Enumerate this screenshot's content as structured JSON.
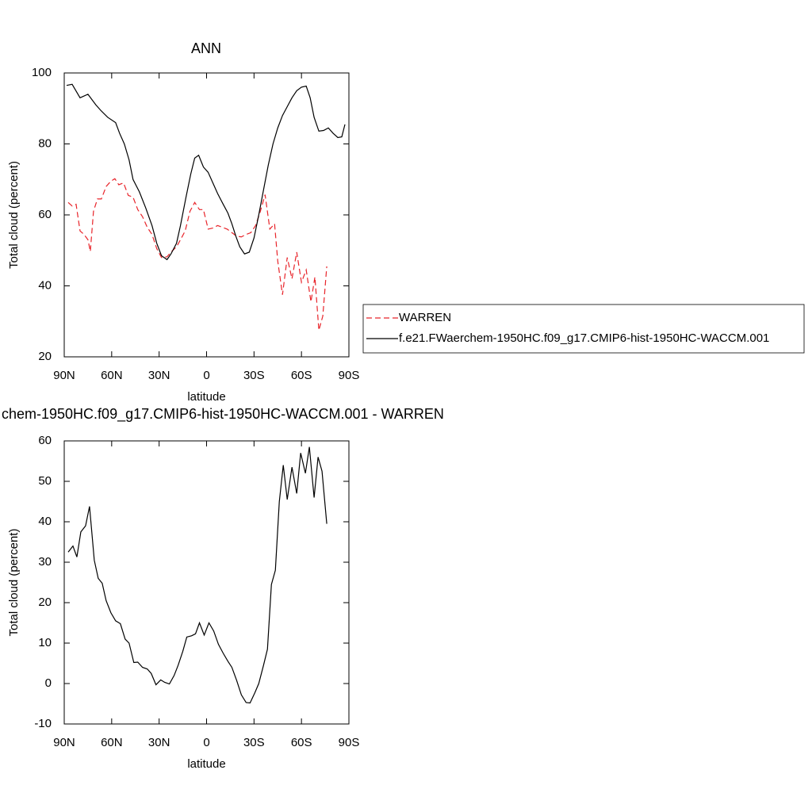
{
  "chart_data": [
    {
      "type": "line",
      "title": "ANN",
      "xlabel": "latitude",
      "ylabel": "Total cloud (percent)",
      "xlim": [
        90,
        -90
      ],
      "xticks": [
        {
          "value": 90,
          "label": "90N"
        },
        {
          "value": 60,
          "label": "60N"
        },
        {
          "value": 30,
          "label": "30N"
        },
        0,
        {
          "value": -30,
          "label": "30S"
        },
        {
          "value": -60,
          "label": "60S"
        },
        {
          "value": -90,
          "label": "90S"
        }
      ],
      "ylim": [
        20,
        100
      ],
      "yticks": [
        20,
        40,
        60,
        80,
        100
      ],
      "legend": "right",
      "series": [
        {
          "name": "WARREN",
          "color": "#e8242a",
          "dash": true,
          "x": [
            87.5,
            85,
            82.5,
            80,
            77.5,
            75,
            73.5,
            71.5,
            69,
            66.5,
            63.5,
            60.5,
            58,
            55.5,
            52.5,
            49.5,
            46.5,
            43.5,
            40.5,
            37.5,
            34.5,
            31.5,
            28.5,
            25,
            22.5,
            19,
            16.5,
            13.5,
            10.5,
            7.5,
            4.5,
            2,
            -1,
            -4,
            -7,
            -10,
            -13,
            -16,
            -19,
            -22,
            -25,
            -28,
            -31,
            -34,
            -37,
            -40,
            -43,
            -45,
            -48,
            -51,
            -54,
            -57,
            -60,
            -63,
            -66,
            -68.5,
            -71,
            -73.5,
            -76
          ],
          "values": [
            63.5,
            62.5,
            63,
            55.5,
            54.5,
            53,
            49.7,
            61,
            64.5,
            64.5,
            68,
            69.5,
            70.2,
            68.5,
            69,
            65.5,
            65,
            61.5,
            59.5,
            56.5,
            54.5,
            50.5,
            48,
            48.2,
            49.5,
            51,
            53,
            55.5,
            61,
            63.5,
            61.5,
            61.5,
            56,
            56.3,
            57,
            56.5,
            56,
            55,
            54,
            53.8,
            54.5,
            55,
            57,
            61,
            65.7,
            56,
            57.5,
            47,
            37.5,
            48,
            42,
            49.5,
            41,
            44.5,
            35.5,
            42.5,
            27.5,
            31.5,
            45.5
          ]
        },
        {
          "name": "f.e21.FWaerchem-1950HC.f09_g17.CMIP6-hist-1950HC-WACCM.001",
          "color": "#000000",
          "dash": false,
          "x": [
            88.5,
            85,
            80,
            75,
            70,
            67,
            62.5,
            57.5,
            55,
            52,
            49,
            46.5,
            42.5,
            38.5,
            34.5,
            31.5,
            28.5,
            25,
            22.5,
            19,
            16.5,
            13,
            10,
            7.5,
            5,
            2,
            -1,
            -4,
            -7,
            -10.5,
            -13.5,
            -16,
            -18.5,
            -21,
            -24,
            -27,
            -30,
            -33,
            -36,
            -39,
            -42,
            -45,
            -48,
            -51,
            -54,
            -57,
            -60,
            -63,
            -65.5,
            -68,
            -71,
            -74,
            -77,
            -80,
            -83,
            -85.5,
            -87.5
          ],
          "values": [
            96.5,
            96.8,
            93,
            94,
            91,
            89.5,
            87.5,
            86,
            83,
            80,
            75.5,
            70,
            66.5,
            62,
            57,
            52,
            48.5,
            47.4,
            49,
            52,
            57,
            65,
            71.5,
            76,
            76.8,
            73.5,
            72,
            69,
            66,
            63,
            60.5,
            57.5,
            54,
            51,
            49,
            49.5,
            53.5,
            60,
            67,
            74,
            80,
            84.5,
            88,
            90.5,
            93,
            95,
            96,
            96.3,
            93,
            87.5,
            83.6,
            83.8,
            84.5,
            83,
            81.8,
            82,
            85.5
          ]
        }
      ]
    },
    {
      "type": "line",
      "title": "chem-1950HC.f09_g17.CMIP6-hist-1950HC-WACCM.001 - WARREN",
      "xlabel": "latitude",
      "ylabel": "Total cloud (percent)",
      "xlim": [
        90,
        -90
      ],
      "xticks": [
        {
          "value": 90,
          "label": "90N"
        },
        {
          "value": 60,
          "label": "60N"
        },
        {
          "value": 30,
          "label": "30N"
        },
        0,
        {
          "value": -30,
          "label": "30S"
        },
        {
          "value": -60,
          "label": "60S"
        },
        {
          "value": -90,
          "label": "90S"
        }
      ],
      "ylim": [
        -10,
        60
      ],
      "yticks": [
        -10,
        0,
        10,
        20,
        30,
        40,
        50,
        60
      ],
      "series": [
        {
          "color": "#000000",
          "dash": false,
          "x": [
            87.5,
            84.5,
            82,
            79.5,
            76.5,
            74,
            71,
            68.5,
            66,
            63.5,
            60.5,
            57.5,
            54.5,
            51.5,
            49,
            46,
            43.5,
            40.5,
            37.5,
            35,
            32,
            29,
            26.5,
            23.5,
            20.5,
            18,
            15,
            12.5,
            9.5,
            7,
            4.5,
            1.5,
            -1.5,
            -4.5,
            -7.5,
            -10.5,
            -13.5,
            -16,
            -19,
            -22,
            -25,
            -27.5,
            -30.5,
            -33,
            -36,
            -38.5,
            -41,
            -43.5,
            -46,
            -48.5,
            -51,
            -54,
            -57,
            -59.5,
            -62.5,
            -65,
            -68,
            -70.5,
            -73,
            -76
          ],
          "values": [
            32.5,
            34,
            31.3,
            37.5,
            39,
            43.8,
            30.5,
            26,
            24.8,
            20.5,
            17.5,
            15.5,
            14.8,
            11,
            10,
            5.2,
            5.3,
            4,
            3.6,
            2.5,
            -0.3,
            0.9,
            0.3,
            -0.1,
            2,
            4.5,
            8,
            11.5,
            11.8,
            12.3,
            15,
            12,
            15,
            13,
            9.7,
            7.5,
            5.5,
            4,
            0.8,
            -2.8,
            -4.7,
            -4.8,
            -2.3,
            0,
            4.5,
            8.5,
            24.5,
            28,
            45,
            54,
            45.5,
            53.5,
            47,
            57,
            52,
            58.5,
            46,
            56,
            52.5,
            39.5
          ]
        }
      ]
    }
  ]
}
